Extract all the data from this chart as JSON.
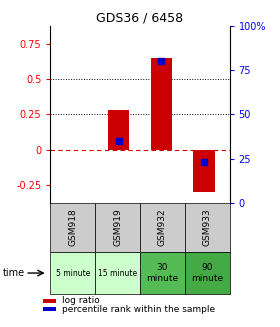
{
  "title": "GDS36 / 6458",
  "samples": [
    "GSM918",
    "GSM919",
    "GSM932",
    "GSM933"
  ],
  "log_ratios": [
    0.0,
    0.28,
    0.65,
    -0.3
  ],
  "percentile_ranks_pct": [
    0.0,
    35.0,
    80.0,
    23.0
  ],
  "ylim_left": [
    -0.375,
    0.875
  ],
  "ylim_right": [
    0,
    100
  ],
  "yticks_left": [
    -0.25,
    0,
    0.25,
    0.5,
    0.75
  ],
  "yticks_right": [
    0,
    25,
    50,
    75,
    100
  ],
  "time_labels": [
    "5 minute",
    "15 minute",
    "30\nminute",
    "90\nminute"
  ],
  "time_colors": [
    "#ccffcc",
    "#ccffcc",
    "#55bb55",
    "#44aa44"
  ],
  "gsm_bg_color": "#cccccc",
  "bar_color": "#cc0000",
  "percentile_color": "#0000cc",
  "zero_line_color": "#cc0000",
  "bar_width": 0.5,
  "legend_bar_label": "log ratio",
  "legend_pct_label": "percentile rank within the sample"
}
